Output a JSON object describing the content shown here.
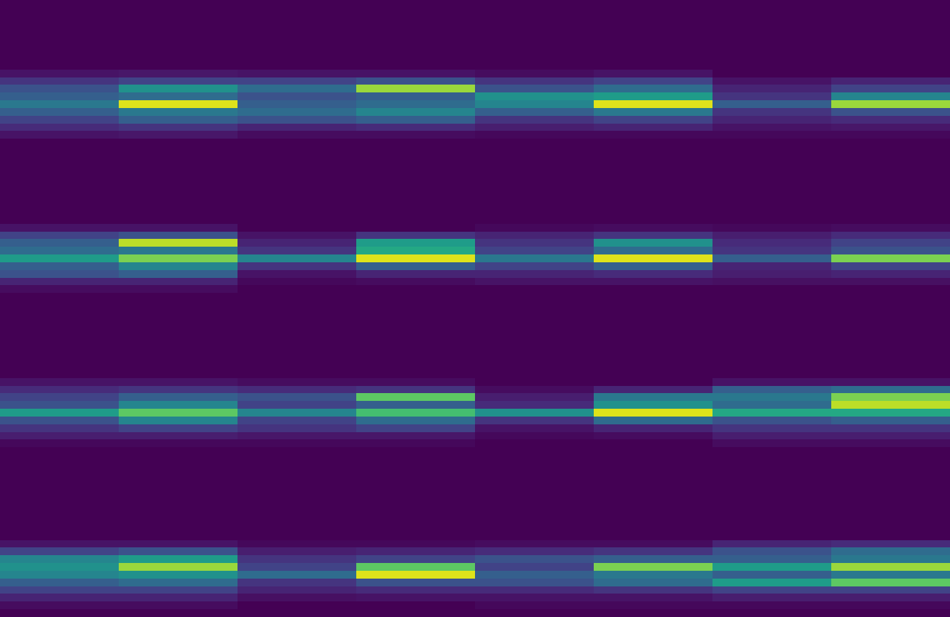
{
  "chart_data": [
    {
      "type": "heatmap",
      "tick_labels": false,
      "zlim": [
        0,
        1
      ],
      "z": [
        [
          0,
          0
        ],
        [
          0,
          0
        ],
        [
          0,
          0
        ],
        [
          0,
          0
        ],
        [
          0,
          0
        ],
        [
          0,
          0
        ],
        [
          0,
          0
        ],
        [
          0,
          0
        ],
        [
          0,
          0
        ],
        [
          0.05,
          0.06
        ],
        [
          0.15,
          0.2
        ],
        [
          0.25,
          0.5
        ],
        [
          0.3,
          0.35
        ],
        [
          0.4,
          0.95
        ],
        [
          0.3,
          0.4
        ],
        [
          0.2,
          0.3
        ],
        [
          0.12,
          0.15
        ],
        [
          0.05,
          0.06
        ],
        [
          0,
          0
        ],
        [
          0,
          0
        ]
      ]
    },
    {
      "type": "heatmap",
      "tick_labels": false,
      "zlim": [
        0,
        1
      ],
      "z": [
        [
          0,
          0
        ],
        [
          0,
          0
        ],
        [
          0,
          0
        ],
        [
          0,
          0
        ],
        [
          0,
          0
        ],
        [
          0,
          0
        ],
        [
          0,
          0
        ],
        [
          0,
          0
        ],
        [
          0,
          0
        ],
        [
          0.05,
          0.05
        ],
        [
          0.2,
          0.25
        ],
        [
          0.35,
          0.85
        ],
        [
          0.25,
          0.3
        ],
        [
          0.3,
          0.35
        ],
        [
          0.35,
          0.45
        ],
        [
          0.25,
          0.3
        ],
        [
          0.1,
          0.12
        ],
        [
          0.03,
          0.03
        ],
        [
          0,
          0
        ],
        [
          0,
          0
        ]
      ]
    },
    {
      "type": "heatmap",
      "tick_labels": false,
      "zlim": [
        0,
        1
      ],
      "z": [
        [
          0,
          0
        ],
        [
          0,
          0
        ],
        [
          0,
          0
        ],
        [
          0,
          0
        ],
        [
          0,
          0
        ],
        [
          0,
          0
        ],
        [
          0,
          0
        ],
        [
          0,
          0
        ],
        [
          0,
          0
        ],
        [
          0.03,
          0.05
        ],
        [
          0.15,
          0.2
        ],
        [
          0.25,
          0.35
        ],
        [
          0.5,
          0.55
        ],
        [
          0.45,
          0.95
        ],
        [
          0.3,
          0.4
        ],
        [
          0.15,
          0.2
        ],
        [
          0.08,
          0.1
        ],
        [
          0.02,
          0.02
        ],
        [
          0,
          0
        ],
        [
          0,
          0
        ]
      ]
    },
    {
      "type": "heatmap",
      "tick_labels": false,
      "zlim": [
        0,
        1
      ],
      "z": [
        [
          0,
          0
        ],
        [
          0,
          0
        ],
        [
          0,
          0
        ],
        [
          0,
          0
        ],
        [
          0,
          0
        ],
        [
          0,
          0
        ],
        [
          0,
          0
        ],
        [
          0,
          0
        ],
        [
          0,
          0
        ],
        [
          0,
          0
        ],
        [
          0.05,
          0.1
        ],
        [
          0.1,
          0.2
        ],
        [
          0.15,
          0.45
        ],
        [
          0.3,
          0.85
        ],
        [
          0.15,
          0.25
        ],
        [
          0.1,
          0.12
        ],
        [
          0.05,
          0.06
        ],
        [
          0.02,
          0.02
        ],
        [
          0,
          0
        ],
        [
          0,
          0
        ]
      ]
    },
    {
      "type": "heatmap",
      "tick_labels": false,
      "zlim": [
        0,
        1
      ],
      "z": [
        [
          0,
          0
        ],
        [
          0,
          0
        ],
        [
          0,
          0
        ],
        [
          0,
          0
        ],
        [
          0,
          0
        ],
        [
          0,
          0
        ],
        [
          0,
          0
        ],
        [
          0,
          0
        ],
        [
          0,
          0
        ],
        [
          0.05,
          0.05
        ],
        [
          0.2,
          0.25
        ],
        [
          0.3,
          0.9
        ],
        [
          0.35,
          0.4
        ],
        [
          0.55,
          0.8
        ],
        [
          0.3,
          0.45
        ],
        [
          0.25,
          0.3
        ],
        [
          0.1,
          0.1
        ],
        [
          0.03,
          0.03
        ],
        [
          0,
          0
        ],
        [
          0,
          0
        ]
      ]
    },
    {
      "type": "heatmap",
      "tick_labels": false,
      "zlim": [
        0,
        1
      ],
      "z": [
        [
          0,
          0
        ],
        [
          0,
          0
        ],
        [
          0,
          0
        ],
        [
          0,
          0
        ],
        [
          0,
          0
        ],
        [
          0,
          0
        ],
        [
          0,
          0
        ],
        [
          0,
          0
        ],
        [
          0,
          0
        ],
        [
          0,
          0
        ],
        [
          0.05,
          0.15
        ],
        [
          0.1,
          0.55
        ],
        [
          0.15,
          0.6
        ],
        [
          0.45,
          0.95
        ],
        [
          0.15,
          0.3
        ],
        [
          0.05,
          0.1
        ],
        [
          0.02,
          0.03
        ],
        [
          0,
          0
        ],
        [
          0,
          0
        ],
        [
          0,
          0
        ]
      ]
    },
    {
      "type": "heatmap",
      "tick_labels": false,
      "zlim": [
        0,
        1
      ],
      "z": [
        [
          0,
          0
        ],
        [
          0,
          0
        ],
        [
          0,
          0
        ],
        [
          0,
          0
        ],
        [
          0,
          0
        ],
        [
          0,
          0
        ],
        [
          0,
          0
        ],
        [
          0,
          0
        ],
        [
          0,
          0
        ],
        [
          0.02,
          0.03
        ],
        [
          0.1,
          0.15
        ],
        [
          0.15,
          0.5
        ],
        [
          0.2,
          0.35
        ],
        [
          0.4,
          0.95
        ],
        [
          0.2,
          0.3
        ],
        [
          0.1,
          0.12
        ],
        [
          0.05,
          0.05
        ],
        [
          0,
          0
        ],
        [
          0,
          0
        ],
        [
          0,
          0
        ]
      ]
    },
    {
      "type": "heatmap",
      "tick_labels": false,
      "zlim": [
        0,
        1
      ],
      "z": [
        [
          0,
          0
        ],
        [
          0,
          0
        ],
        [
          0,
          0
        ],
        [
          0,
          0
        ],
        [
          0,
          0
        ],
        [
          0,
          0
        ],
        [
          0,
          0
        ],
        [
          0,
          0
        ],
        [
          0,
          0
        ],
        [
          0.02,
          0.03
        ],
        [
          0.08,
          0.12
        ],
        [
          0.12,
          0.2
        ],
        [
          0.15,
          0.25
        ],
        [
          0.3,
          0.8
        ],
        [
          0.1,
          0.2
        ],
        [
          0.08,
          0.1
        ],
        [
          0.04,
          0.04
        ],
        [
          0,
          0
        ],
        [
          0,
          0
        ],
        [
          0,
          0
        ]
      ]
    },
    {
      "type": "heatmap",
      "tick_labels": false,
      "zlim": [
        0,
        1
      ],
      "z": [
        [
          0,
          0
        ],
        [
          0,
          0
        ],
        [
          0,
          0
        ],
        [
          0,
          0
        ],
        [
          0,
          0
        ],
        [
          0,
          0
        ],
        [
          0,
          0
        ],
        [
          0,
          0
        ],
        [
          0,
          0
        ],
        [
          0.05,
          0.05
        ],
        [
          0.12,
          0.15
        ],
        [
          0.2,
          0.3
        ],
        [
          0.25,
          0.45
        ],
        [
          0.55,
          0.75
        ],
        [
          0.25,
          0.45
        ],
        [
          0.15,
          0.2
        ],
        [
          0.08,
          0.08
        ],
        [
          0.02,
          0.02
        ],
        [
          0,
          0
        ],
        [
          0,
          0
        ]
      ]
    },
    {
      "type": "heatmap",
      "tick_labels": false,
      "zlim": [
        0,
        1
      ],
      "z": [
        [
          0,
          0
        ],
        [
          0,
          0
        ],
        [
          0,
          0
        ],
        [
          0,
          0
        ],
        [
          0,
          0
        ],
        [
          0,
          0
        ],
        [
          0,
          0
        ],
        [
          0,
          0
        ],
        [
          0,
          0
        ],
        [
          0.03,
          0.03
        ],
        [
          0.12,
          0.15
        ],
        [
          0.25,
          0.75
        ],
        [
          0.2,
          0.3
        ],
        [
          0.45,
          0.7
        ],
        [
          0.2,
          0.35
        ],
        [
          0.15,
          0.2
        ],
        [
          0.06,
          0.06
        ],
        [
          0.02,
          0.02
        ],
        [
          0,
          0
        ],
        [
          0,
          0
        ]
      ]
    },
    {
      "type": "heatmap",
      "tick_labels": false,
      "zlim": [
        0,
        1
      ],
      "z": [
        [
          0,
          0
        ],
        [
          0,
          0
        ],
        [
          0,
          0
        ],
        [
          0,
          0
        ],
        [
          0,
          0
        ],
        [
          0,
          0
        ],
        [
          0,
          0
        ],
        [
          0,
          0
        ],
        [
          0,
          0
        ],
        [
          0,
          0
        ],
        [
          0.03,
          0.1
        ],
        [
          0.08,
          0.4
        ],
        [
          0.12,
          0.5
        ],
        [
          0.5,
          0.95
        ],
        [
          0.15,
          0.35
        ],
        [
          0.05,
          0.1
        ],
        [
          0.02,
          0.03
        ],
        [
          0,
          0
        ],
        [
          0,
          0
        ],
        [
          0,
          0
        ]
      ]
    },
    {
      "type": "heatmap",
      "tick_labels": false,
      "zlim": [
        0,
        1
      ],
      "z": [
        [
          0,
          0
        ],
        [
          0,
          0
        ],
        [
          0,
          0
        ],
        [
          0,
          0
        ],
        [
          0,
          0
        ],
        [
          0,
          0
        ],
        [
          0,
          0
        ],
        [
          0,
          0
        ],
        [
          0,
          0
        ],
        [
          0.05,
          0.05
        ],
        [
          0.3,
          0.35
        ],
        [
          0.4,
          0.8
        ],
        [
          0.35,
          0.9
        ],
        [
          0.6,
          0.6
        ],
        [
          0.25,
          0.3
        ],
        [
          0.15,
          0.15
        ],
        [
          0.08,
          0.08
        ],
        [
          0.03,
          0.03
        ],
        [
          0,
          0
        ],
        [
          0,
          0
        ]
      ]
    },
    {
      "type": "heatmap",
      "tick_labels": false,
      "zlim": [
        0,
        1
      ],
      "z": [
        [
          0,
          0
        ],
        [
          0,
          0
        ],
        [
          0,
          0
        ],
        [
          0,
          0
        ],
        [
          0,
          0
        ],
        [
          0,
          0
        ],
        [
          0,
          0
        ],
        [
          0,
          0
        ],
        [
          0,
          0
        ],
        [
          0,
          0
        ],
        [
          0.05,
          0.05
        ],
        [
          0.2,
          0.25
        ],
        [
          0.45,
          0.55
        ],
        [
          0.5,
          0.85
        ],
        [
          0.45,
          0.5
        ],
        [
          0.3,
          0.35
        ],
        [
          0.2,
          0.2
        ],
        [
          0.1,
          0.1
        ],
        [
          0.03,
          0.03
        ],
        [
          0,
          0
        ]
      ]
    },
    {
      "type": "heatmap",
      "tick_labels": false,
      "zlim": [
        0,
        1
      ],
      "z": [
        [
          0,
          0
        ],
        [
          0,
          0
        ],
        [
          0,
          0
        ],
        [
          0,
          0
        ],
        [
          0,
          0
        ],
        [
          0,
          0
        ],
        [
          0,
          0
        ],
        [
          0,
          0
        ],
        [
          0,
          0
        ],
        [
          0,
          0
        ],
        [
          0.02,
          0.02
        ],
        [
          0.08,
          0.1
        ],
        [
          0.15,
          0.2
        ],
        [
          0.2,
          0.75
        ],
        [
          0.35,
          0.95
        ],
        [
          0.15,
          0.25
        ],
        [
          0.1,
          0.12
        ],
        [
          0.04,
          0.05
        ],
        [
          0,
          0
        ],
        [
          0,
          0
        ]
      ]
    },
    {
      "type": "heatmap",
      "tick_labels": false,
      "zlim": [
        0,
        1
      ],
      "z": [
        [
          0,
          0
        ],
        [
          0,
          0
        ],
        [
          0,
          0
        ],
        [
          0,
          0
        ],
        [
          0,
          0
        ],
        [
          0,
          0
        ],
        [
          0,
          0
        ],
        [
          0,
          0
        ],
        [
          0,
          0
        ],
        [
          0,
          0
        ],
        [
          0.03,
          0.03
        ],
        [
          0.12,
          0.15
        ],
        [
          0.25,
          0.3
        ],
        [
          0.2,
          0.8
        ],
        [
          0.3,
          0.4
        ],
        [
          0.25,
          0.35
        ],
        [
          0.12,
          0.15
        ],
        [
          0.05,
          0.05
        ],
        [
          0.02,
          0.02
        ],
        [
          0,
          0
        ]
      ]
    },
    {
      "type": "heatmap",
      "tick_labels": false,
      "zlim": [
        0,
        1
      ],
      "z": [
        [
          0,
          0
        ],
        [
          0,
          0
        ],
        [
          0,
          0
        ],
        [
          0,
          0
        ],
        [
          0,
          0
        ],
        [
          0,
          0
        ],
        [
          0,
          0
        ],
        [
          0,
          0
        ],
        [
          0,
          0
        ],
        [
          0,
          0
        ],
        [
          0.1,
          0.12
        ],
        [
          0.25,
          0.35
        ],
        [
          0.3,
          0.4
        ],
        [
          0.55,
          0.85
        ],
        [
          0.3,
          0.4
        ],
        [
          0.55,
          0.75
        ],
        [
          0.2,
          0.2
        ],
        [
          0.08,
          0.08
        ],
        [
          0.02,
          0.02
        ],
        [
          0,
          0
        ]
      ]
    }
  ]
}
